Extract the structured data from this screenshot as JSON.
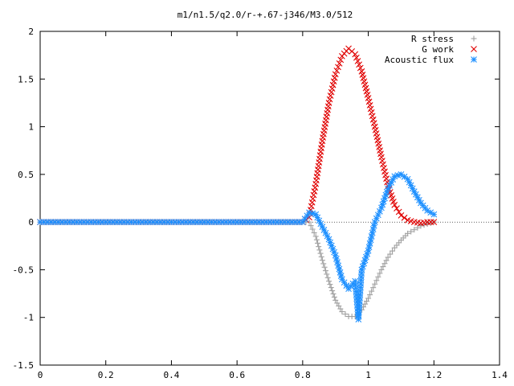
{
  "chart_data": {
    "type": "scatter",
    "title": "m1/n1.5/q2.0/r-+.67-j346/M3.0/512",
    "xlabel": "",
    "ylabel": "",
    "xlim": [
      0,
      1.4
    ],
    "ylim": [
      -1.5,
      2
    ],
    "x_ticks": [
      "0",
      "0.2",
      "0.4",
      "0.6",
      "0.8",
      "1",
      "1.2",
      "1.4"
    ],
    "y_ticks": [
      "2",
      "1.5",
      "1",
      "0.5",
      "0",
      "-0.5",
      "-1",
      "-1.5"
    ],
    "grid": false,
    "legend_position": "top-right",
    "series": [
      {
        "name": "R stress",
        "marker": "plus",
        "color": "#a0a0a0",
        "points": [
          [
            0.0,
            0
          ],
          [
            0.2,
            0
          ],
          [
            0.4,
            0
          ],
          [
            0.6,
            0
          ],
          [
            0.8,
            0
          ],
          [
            0.82,
            0
          ],
          [
            0.84,
            -0.15
          ],
          [
            0.86,
            -0.4
          ],
          [
            0.88,
            -0.62
          ],
          [
            0.9,
            -0.82
          ],
          [
            0.92,
            -0.94
          ],
          [
            0.94,
            -0.99
          ],
          [
            0.96,
            -0.99
          ],
          [
            0.98,
            -0.92
          ],
          [
            1.0,
            -0.8
          ],
          [
            1.02,
            -0.65
          ],
          [
            1.04,
            -0.5
          ],
          [
            1.06,
            -0.37
          ],
          [
            1.08,
            -0.27
          ],
          [
            1.1,
            -0.19
          ],
          [
            1.12,
            -0.12
          ],
          [
            1.14,
            -0.08
          ],
          [
            1.16,
            -0.04
          ],
          [
            1.18,
            -0.02
          ],
          [
            1.2,
            0
          ]
        ]
      },
      {
        "name": "G work",
        "marker": "cross",
        "color": "#e00000",
        "points": [
          [
            0.0,
            0
          ],
          [
            0.2,
            0
          ],
          [
            0.4,
            0
          ],
          [
            0.6,
            0
          ],
          [
            0.8,
            0
          ],
          [
            0.82,
            0.05
          ],
          [
            0.84,
            0.4
          ],
          [
            0.86,
            0.85
          ],
          [
            0.88,
            1.25
          ],
          [
            0.9,
            1.55
          ],
          [
            0.92,
            1.74
          ],
          [
            0.94,
            1.82
          ],
          [
            0.96,
            1.76
          ],
          [
            0.98,
            1.58
          ],
          [
            1.0,
            1.3
          ],
          [
            1.02,
            1.0
          ],
          [
            1.04,
            0.68
          ],
          [
            1.06,
            0.38
          ],
          [
            1.08,
            0.18
          ],
          [
            1.1,
            0.07
          ],
          [
            1.12,
            0.02
          ],
          [
            1.14,
            0.0
          ],
          [
            1.16,
            -0.01
          ],
          [
            1.18,
            0.0
          ],
          [
            1.2,
            0
          ]
        ]
      },
      {
        "name": "Acoustic flux",
        "marker": "star",
        "color": "#1e90ff",
        "points": [
          [
            0.0,
            0
          ],
          [
            0.2,
            0
          ],
          [
            0.4,
            0
          ],
          [
            0.6,
            0
          ],
          [
            0.8,
            0
          ],
          [
            0.82,
            0.1
          ],
          [
            0.84,
            0.08
          ],
          [
            0.86,
            -0.05
          ],
          [
            0.88,
            -0.18
          ],
          [
            0.9,
            -0.35
          ],
          [
            0.92,
            -0.6
          ],
          [
            0.94,
            -0.7
          ],
          [
            0.96,
            -0.62
          ],
          [
            0.97,
            -1.02
          ],
          [
            0.98,
            -0.5
          ],
          [
            1.0,
            -0.3
          ],
          [
            1.02,
            0.0
          ],
          [
            1.04,
            0.15
          ],
          [
            1.06,
            0.35
          ],
          [
            1.08,
            0.48
          ],
          [
            1.1,
            0.5
          ],
          [
            1.12,
            0.45
          ],
          [
            1.14,
            0.32
          ],
          [
            1.16,
            0.2
          ],
          [
            1.18,
            0.12
          ],
          [
            1.2,
            0.08
          ]
        ]
      }
    ]
  }
}
